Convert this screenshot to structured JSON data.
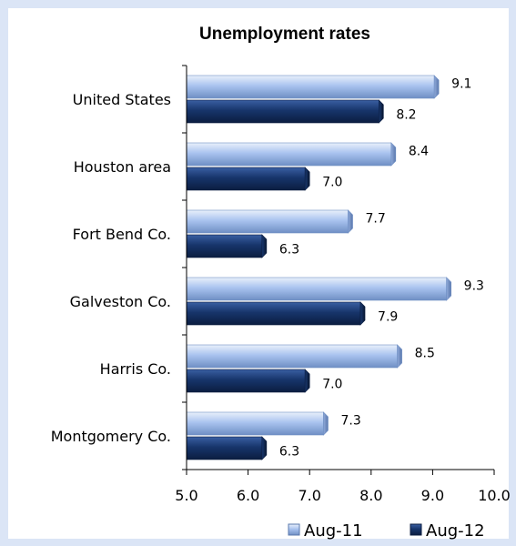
{
  "chart_data": {
    "type": "bar",
    "orientation": "horizontal",
    "title": "Unemployment rates",
    "categories": [
      "United States",
      "Houston area",
      "Fort Bend Co.",
      "Galveston Co.",
      "Harris Co.",
      "Montgomery Co."
    ],
    "series": [
      {
        "name": "Aug-11",
        "values": [
          9.1,
          8.4,
          7.7,
          9.3,
          8.5,
          7.3
        ],
        "color": "#a9c3ef",
        "value_labels": [
          "9.1",
          "8.4",
          "7.7",
          "9.3",
          "8.5",
          "7.3"
        ]
      },
      {
        "name": "Aug-12",
        "values": [
          8.2,
          7.0,
          6.3,
          7.9,
          7.0,
          6.3
        ],
        "color": "#17356b",
        "value_labels": [
          "8.2",
          "7.0",
          "6.3",
          "7.9",
          "7.0",
          "6.3"
        ]
      }
    ],
    "xlim": [
      5.0,
      10.0
    ],
    "xticks": [
      5.0,
      6.0,
      7.0,
      8.0,
      9.0,
      10.0
    ],
    "xtick_labels": [
      "5.0",
      "6.0",
      "7.0",
      "8.0",
      "9.0",
      "10.0"
    ],
    "grid": false,
    "legend_position": "bottom-right",
    "xlabel": "",
    "ylabel": ""
  },
  "colors": {
    "frame": "#dbe5f6",
    "aug11_light": "#cfdcf6",
    "aug11_dark": "#6f8fc4",
    "aug12_light": "#2b4f8f",
    "aug12_dark": "#0b1d40"
  }
}
